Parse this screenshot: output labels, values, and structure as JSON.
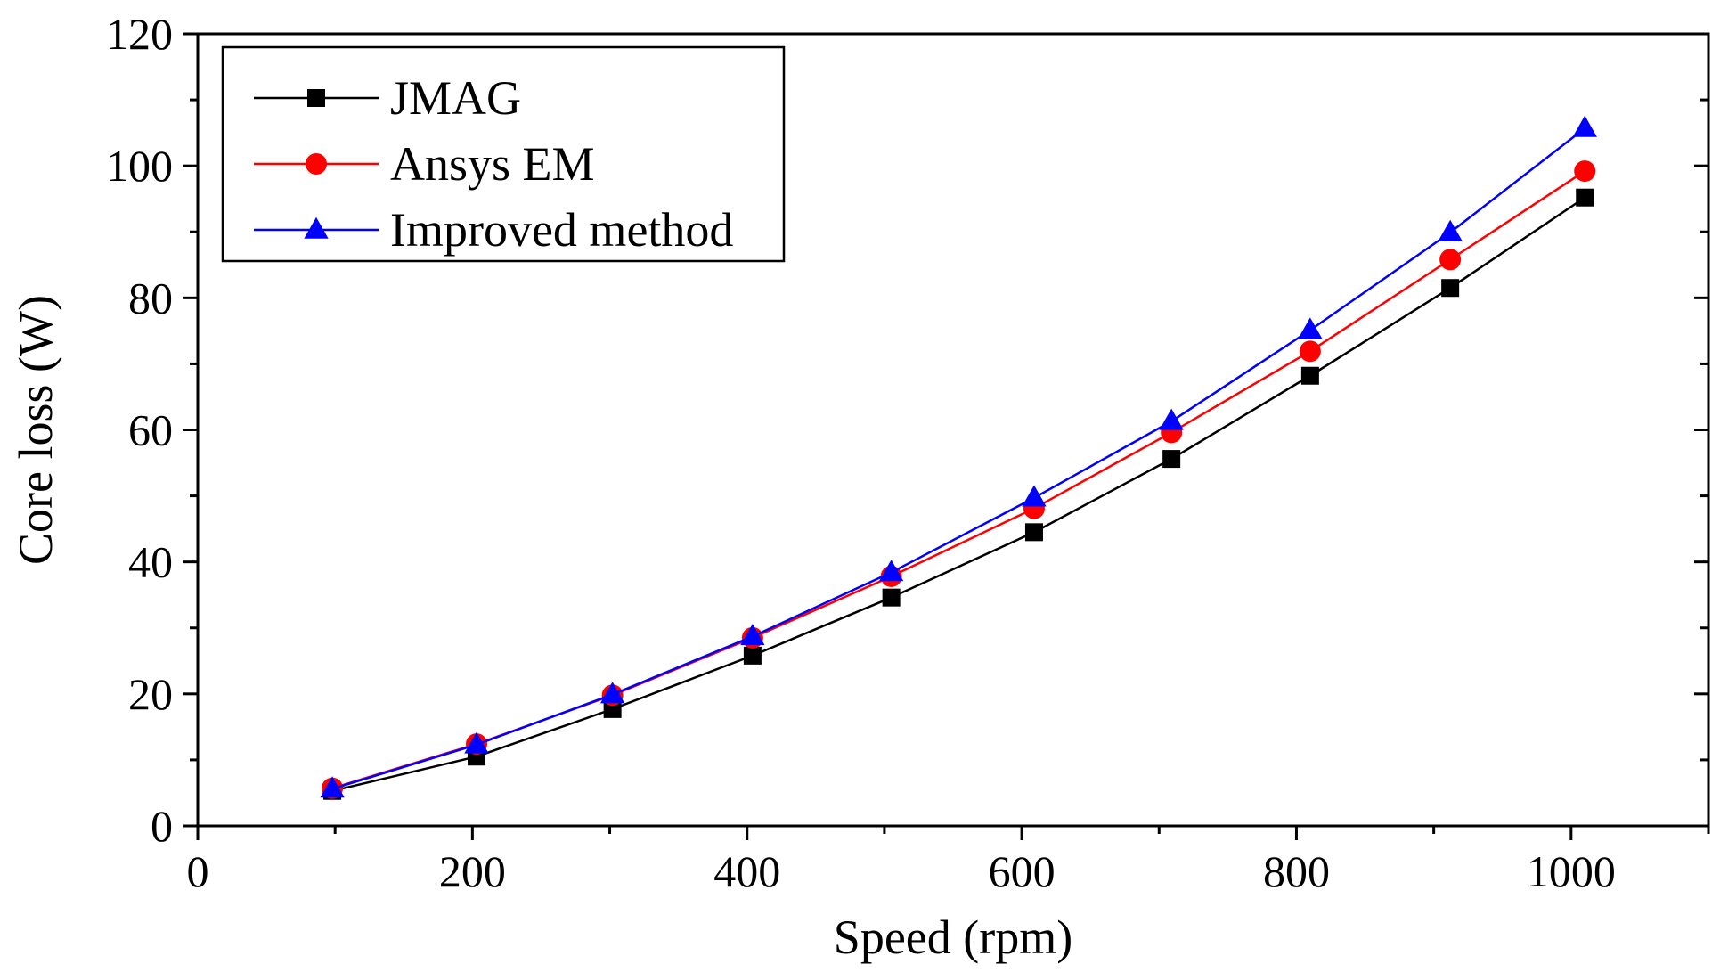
{
  "chart_data": {
    "type": "line",
    "title": "",
    "xlabel": "Speed (rpm)",
    "ylabel": "Core loss (W)",
    "xlim": [
      0,
      1100
    ],
    "ylim": [
      0,
      120
    ],
    "xticks": [
      0,
      200,
      400,
      600,
      800,
      1000
    ],
    "yticks": [
      0,
      20,
      40,
      60,
      80,
      100,
      120
    ],
    "xtick_labels": [
      "0",
      "200",
      "400",
      "600",
      "800",
      "1000"
    ],
    "ytick_labels": [
      "0",
      "20",
      "40",
      "60",
      "80",
      "100",
      "120"
    ],
    "x_minor": [
      100,
      300,
      500,
      700,
      900,
      1100
    ],
    "y_minor": [
      10,
      30,
      50,
      70,
      90,
      110
    ],
    "grid": false,
    "legend_position": "top-left",
    "series": [
      {
        "name": "JMAG",
        "color": "#000000",
        "marker": "square",
        "x": [
          98,
          203,
          302,
          404,
          505,
          609,
          709,
          810,
          912,
          1010
        ],
        "y": [
          5.3,
          10.5,
          17.7,
          25.8,
          34.6,
          44.5,
          55.6,
          68.2,
          81.5,
          95.2
        ]
      },
      {
        "name": "Ansys EM",
        "color": "#ff0000",
        "marker": "circle",
        "x": [
          98,
          203,
          302,
          404,
          505,
          609,
          709,
          810,
          912,
          1010
        ],
        "y": [
          5.7,
          12.4,
          19.8,
          28.5,
          37.8,
          48.1,
          59.6,
          71.9,
          85.8,
          99.2
        ]
      },
      {
        "name": "Improved method",
        "color": "#0000ff",
        "marker": "triangle",
        "x": [
          98,
          203,
          302,
          404,
          505,
          609,
          709,
          810,
          912,
          1010
        ],
        "y": [
          5.6,
          12.3,
          19.9,
          28.7,
          38.4,
          49.7,
          61.3,
          75.1,
          89.9,
          105.7
        ]
      }
    ]
  }
}
